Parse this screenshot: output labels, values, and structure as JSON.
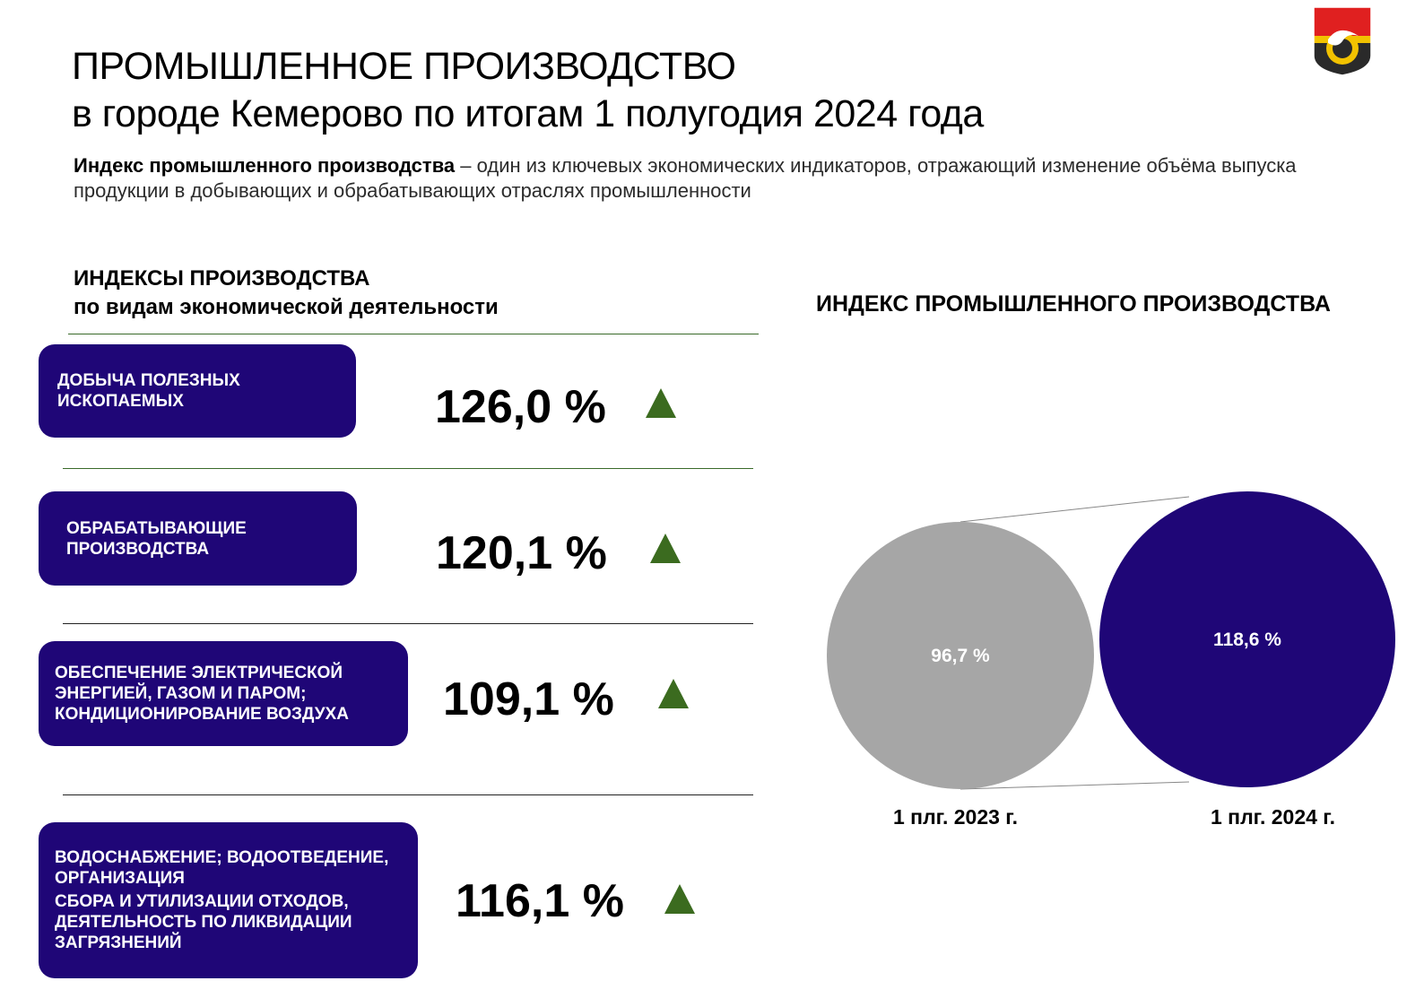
{
  "header": {
    "title_line1": "ПРОМЫШЛЕННОЕ ПРОИЗВОДСТВО",
    "title_line2": "в городе Кемерово по итогам 1 полугодия 2024 года",
    "intro_bold": "Индекс промышленного производства",
    "intro_rest": " – один из ключевых экономических индикаторов, отражающий изменение объёма выпуска продукции в добывающих и обрабатывающих отраслях промышленности",
    "logo_icon": "kemerovo-coat-of-arms-icon"
  },
  "left": {
    "heading_line1": "ИНДЕКСЫ ПРОИЗВОДСТВА",
    "heading_line2": "по видам экономической деятельности",
    "items": [
      {
        "lines": [
          "ДОБЫЧА ПОЛЕЗНЫХ",
          "ИСКОПАЕМЫХ"
        ],
        "value": "126,0 %",
        "trend_icon": "up-triangle-icon"
      },
      {
        "lines": [
          "ОБРАБАТЫВАЮЩИЕ",
          "ПРОИЗВОДСТВА"
        ],
        "value": "120,1 %",
        "trend_icon": "up-triangle-icon"
      },
      {
        "lines": [
          "ОБЕСПЕЧЕНИЕ ЭЛЕКТРИЧЕСКОЙ",
          "ЭНЕРГИЕЙ, ГАЗОМ И ПАРОМ;",
          "КОНДИЦИОНИРОВАНИЕ ВОЗДУХА"
        ],
        "value": "109,1 %",
        "trend_icon": "up-triangle-icon"
      },
      {
        "lines": [
          "ВОДОСНАБЖЕНИЕ; ВОДООТВЕДЕНИЕ,",
          "ОРГАНИЗАЦИЯ",
          "СБОРА И УТИЛИЗАЦИИ ОТХОДОВ,",
          "ДЕЯТЕЛЬНОСТЬ ПО ЛИКВИДАЦИИ",
          "ЗАГРЯЗНЕНИЙ"
        ],
        "value": "116,1 %",
        "trend_icon": "up-triangle-icon"
      }
    ],
    "colors": {
      "card": "#1f0677",
      "trend_up": "#3b6b1f"
    }
  },
  "chart_data": {
    "type": "bubble",
    "title": "ИНДЕКС ПРОМЫШЛЕННОГО ПРОИЗВОДСТВА",
    "categories": [
      "1 плг. 2023 г.",
      "1 плг. 2024 г."
    ],
    "values": [
      96.7,
      118.6
    ],
    "labels": [
      "96,7 %",
      "118,6 %"
    ],
    "colors": [
      "#a6a6a6",
      "#1f0677"
    ]
  }
}
